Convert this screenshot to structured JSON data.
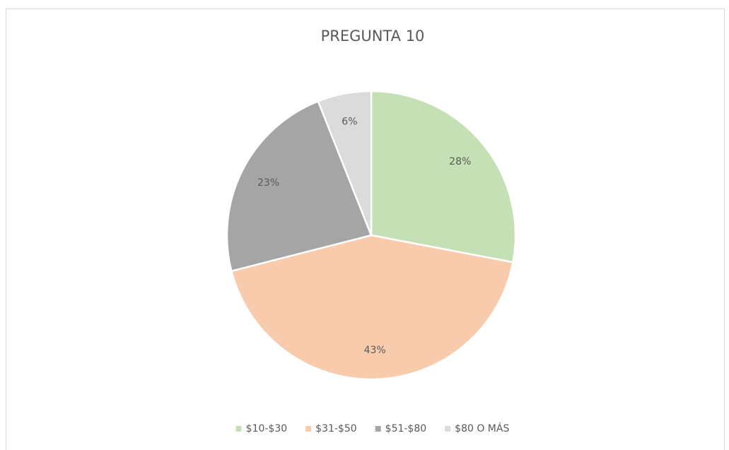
{
  "chart_data": {
    "type": "pie",
    "title": "PREGUNTA 10",
    "categories": [
      "$10-$30",
      "$31-$50",
      "$51-$80",
      "$80 O MÁS"
    ],
    "values": [
      28,
      43,
      23,
      6
    ],
    "value_labels": [
      "28%",
      "43%",
      "23%",
      "6%"
    ],
    "colors": [
      "#c5e0b4",
      "#f8cbad",
      "#a5a5a5",
      "#dbdbdb"
    ],
    "legend": "bottom"
  }
}
